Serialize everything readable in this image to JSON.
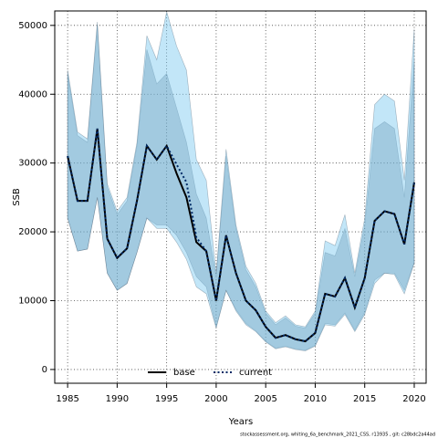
{
  "chart_data": {
    "type": "line",
    "xlabel": "Years",
    "ylabel": "SSB",
    "footnote": "stockassessment.org, whiting_6a_benchmark_2021_CSS, r13935 , git: c28bdc2a44ad",
    "x": [
      1985,
      1986,
      1987,
      1988,
      1989,
      1990,
      1991,
      1992,
      1993,
      1994,
      1995,
      1996,
      1997,
      1998,
      1999,
      2000,
      2001,
      2002,
      2003,
      2004,
      2005,
      2006,
      2007,
      2008,
      2009,
      2010,
      2011,
      2012,
      2013,
      2014,
      2015,
      2016,
      2017,
      2018,
      2019,
      2020
    ],
    "xlim": [
      1983.7,
      2021.2
    ],
    "xticks": [
      1985,
      1990,
      1995,
      2000,
      2005,
      2010,
      2015,
      2020
    ],
    "ylim": [
      -2000,
      52100
    ],
    "yticks": [
      0,
      10000,
      20000,
      30000,
      40000,
      50000
    ],
    "grid": true,
    "legend": "bottom",
    "series": [
      {
        "name": "base",
        "color": "#000000",
        "band_color": "rgba(90,110,130,0.35)",
        "values": [
          31000,
          24500,
          24500,
          35000,
          19000,
          16200,
          17600,
          24500,
          32500,
          30500,
          32500,
          28500,
          25000,
          18500,
          17200,
          10000,
          19500,
          14000,
          10000,
          8600,
          6200,
          4600,
          5000,
          4400,
          4100,
          5300,
          11000,
          10600,
          13300,
          9000,
          13300,
          21600,
          23000,
          22600,
          18200,
          27200
        ],
        "upper": [
          43000,
          34000,
          33000,
          50000,
          26500,
          22500,
          24500,
          32500,
          46500,
          41500,
          43000,
          38000,
          33000,
          25500,
          22000,
          13500,
          31000,
          20500,
          14500,
          12000,
          8200,
          6500,
          7500,
          6300,
          6000,
          8200,
          17000,
          16500,
          20500,
          13500,
          21000,
          35000,
          36000,
          35000,
          25000,
          45000
        ],
        "lower": [
          22000,
          17200,
          17500,
          25000,
          14000,
          11500,
          12500,
          17000,
          22000,
          21000,
          21000,
          19500,
          17000,
          13500,
          12000,
          6200,
          11500,
          8700,
          6700,
          5600,
          4100,
          3100,
          3400,
          3000,
          2800,
          3500,
          6700,
          6500,
          8200,
          5700,
          8300,
          13000,
          14000,
          14000,
          11500,
          15500
        ]
      },
      {
        "name": "current",
        "color": "#002a66",
        "band_color": "rgba(120,200,240,0.45)",
        "values": [
          31000,
          24500,
          24500,
          35000,
          19000,
          16200,
          17600,
          24500,
          32500,
          30500,
          32500,
          29800,
          27200,
          19200,
          17200,
          10000,
          19500,
          14000,
          10000,
          8600,
          6200,
          4600,
          5000,
          4400,
          4100,
          5300,
          11000,
          10600,
          13300,
          9000,
          13300,
          21600,
          23000,
          22600,
          18200,
          27200
        ],
        "upper": [
          43500,
          34500,
          33500,
          50500,
          27000,
          23000,
          25000,
          33000,
          48500,
          45000,
          52000,
          47000,
          43500,
          30500,
          27500,
          14000,
          32000,
          21000,
          15000,
          12500,
          8500,
          6800,
          7800,
          6500,
          6200,
          8500,
          18700,
          18000,
          22500,
          14000,
          22000,
          38500,
          40000,
          39000,
          27500,
          49500
        ],
        "lower": [
          22000,
          17200,
          17500,
          25000,
          14000,
          11500,
          12500,
          17000,
          22000,
          20500,
          20500,
          18500,
          16000,
          12000,
          11000,
          6000,
          11500,
          8500,
          6500,
          5500,
          4000,
          3000,
          3300,
          2900,
          2700,
          3400,
          6500,
          6300,
          8000,
          5500,
          8000,
          12500,
          14000,
          13800,
          11000,
          15500
        ]
      }
    ]
  }
}
